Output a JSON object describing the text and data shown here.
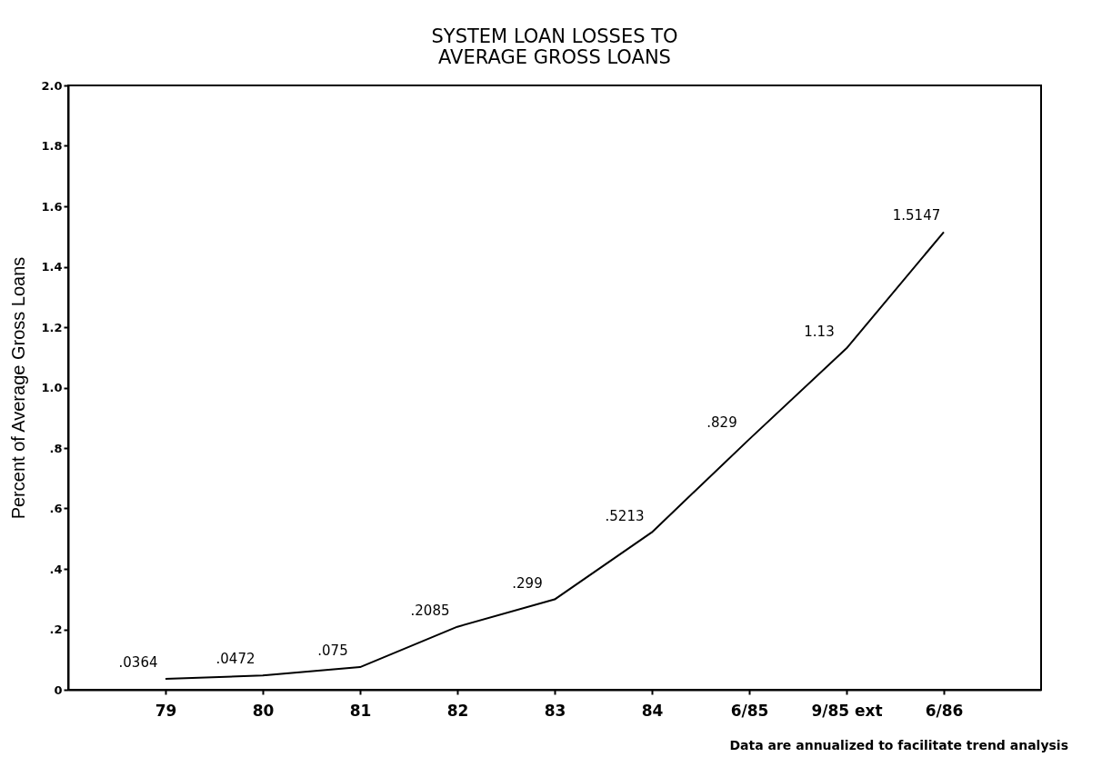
{
  "chart_data": {
    "type": "line",
    "title": "SYSTEM LOAN LOSSES TO\nAVERAGE GROSS LOANS",
    "ylabel": "Percent of Average Gross Loans",
    "categories": [
      "79",
      "80",
      "81",
      "82",
      "83",
      "84",
      "6/85",
      "9/85 ext",
      "6/86"
    ],
    "series": [
      {
        "color": "#000000",
        "values": [
          0.0364,
          0.0472,
          0.075,
          0.2085,
          0.299,
          0.5213,
          0.829,
          1.13,
          1.5147
        ],
        "value_labels": [
          ".0364",
          ".0472",
          ".075",
          ".2085",
          ".299",
          ".5213",
          ".829",
          "1.13",
          "1.5147"
        ]
      }
    ],
    "ylim": [
      0,
      2.0
    ],
    "yticks": [
      0,
      {
        "value": 0.2,
        "label": ".2"
      },
      {
        "value": 0.4,
        "label": ".4"
      },
      {
        "value": 0.6,
        "label": ".6"
      },
      {
        "value": 0.8,
        "label": ".8"
      },
      {
        "value": 1.0,
        "label": "1.0"
      },
      {
        "value": 1.2,
        "label": "1.2"
      },
      {
        "value": 1.4,
        "label": "1.4"
      },
      {
        "value": 1.6,
        "label": "1.6"
      },
      {
        "value": 1.8,
        "label": "1.8"
      },
      {
        "value": 2.0,
        "label": "2.0"
      }
    ],
    "grid": false,
    "marker": "none",
    "line_style": "solid",
    "annotations": [
      "Data are annualized to facilitate trend analysis"
    ]
  }
}
